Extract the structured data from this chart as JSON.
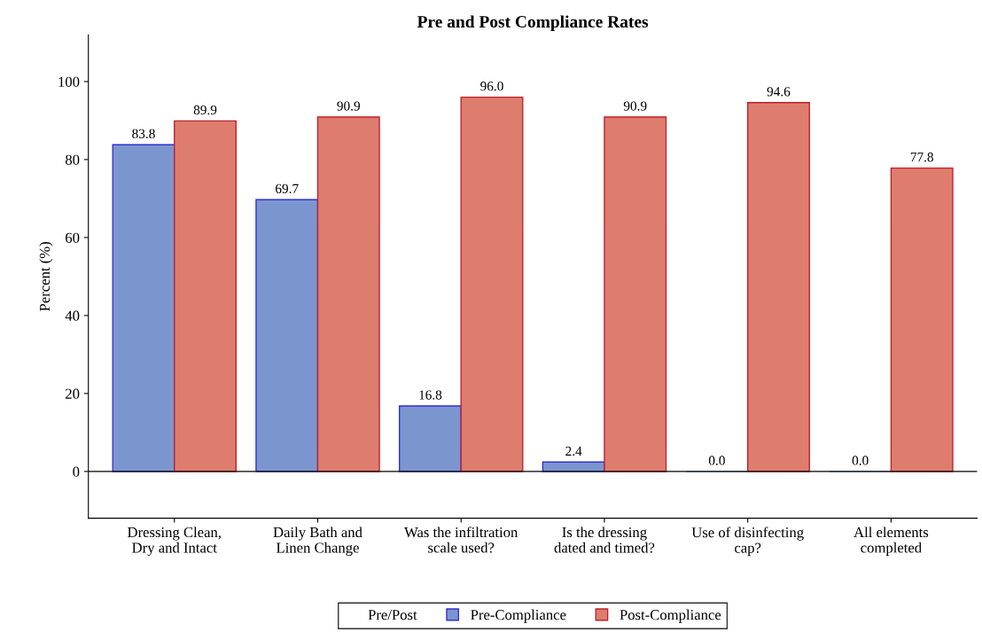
{
  "chart_data": {
    "type": "bar",
    "title": "Pre and Post Compliance Rates",
    "ylabel": "Percent (%)",
    "legend_title": "Pre/Post",
    "categories": [
      "Dressing Clean,\nDry and Intact",
      "Daily Bath and\nLinen Change",
      "Was the infiltration\nscale used?",
      "Is the dressing\ndated and timed?",
      "Use of disinfecting\ncap?",
      "All elements\ncompleted"
    ],
    "series": [
      {
        "name": "Pre-Compliance",
        "color": "#7b96cf",
        "values": [
          83.8,
          69.7,
          16.8,
          2.4,
          0.0,
          0.0
        ],
        "value_labels": [
          "83.8",
          "69.7",
          "16.8",
          "2.4",
          "0.0",
          "0.0"
        ]
      },
      {
        "name": "Post-Compliance",
        "color": "#de7d6d",
        "values": [
          89.9,
          90.9,
          96.0,
          90.9,
          94.6,
          77.8
        ],
        "value_labels": [
          "89.9",
          "90.9",
          "96.0",
          "90.9",
          "94.6",
          "77.8"
        ]
      }
    ],
    "ylim": [
      -12,
      112
    ],
    "yticks": [
      0,
      20,
      40,
      60,
      80,
      100
    ],
    "ref_lines": [
      {
        "axis": "y",
        "value": 0,
        "color": "#000000"
      }
    ],
    "grid": false,
    "legend": "bottom"
  }
}
